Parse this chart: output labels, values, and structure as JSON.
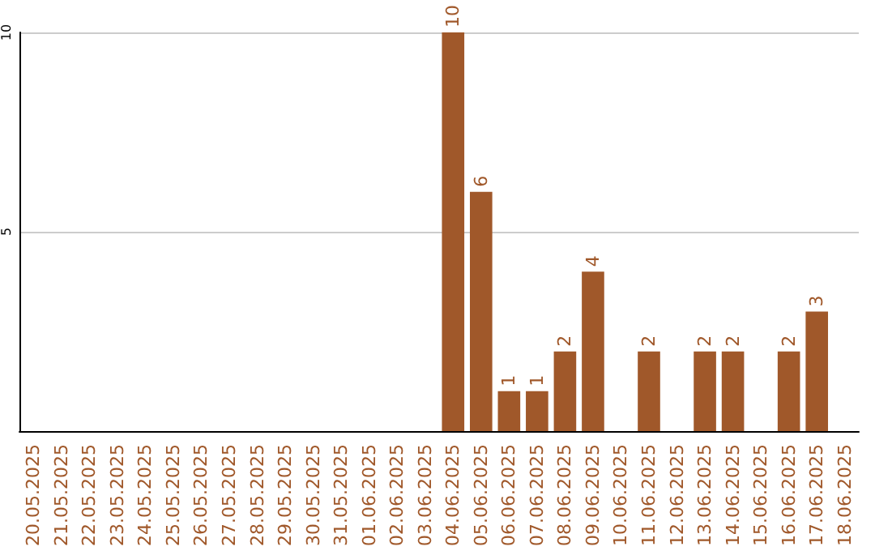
{
  "chart_data": {
    "type": "bar",
    "categories": [
      "20.05.2025",
      "21.05.2025",
      "22.05.2025",
      "23.05.2025",
      "24.05.2025",
      "25.05.2025",
      "26.05.2025",
      "27.05.2025",
      "28.05.2025",
      "29.05.2025",
      "30.05.2025",
      "31.05.2025",
      "01.06.2025",
      "02.06.2025",
      "03.06.2025",
      "04.06.2025",
      "05.06.2025",
      "06.06.2025",
      "07.06.2025",
      "08.06.2025",
      "09.06.2025",
      "10.06.2025",
      "11.06.2025",
      "12.06.2025",
      "13.06.2025",
      "14.06.2025",
      "15.06.2025",
      "16.06.2025",
      "17.06.2025",
      "18.06.2025"
    ],
    "values": [
      0,
      0,
      0,
      0,
      0,
      0,
      0,
      0,
      0,
      0,
      0,
      0,
      0,
      0,
      0,
      10,
      6,
      1,
      1,
      2,
      4,
      0,
      2,
      0,
      2,
      2,
      0,
      2,
      3,
      0
    ],
    "value_labels": [
      null,
      null,
      null,
      null,
      null,
      null,
      null,
      null,
      null,
      null,
      null,
      null,
      null,
      null,
      null,
      "10",
      "6",
      "1",
      "1",
      "2",
      "4",
      null,
      "2",
      null,
      "2",
      "2",
      null,
      "2",
      "3",
      null
    ],
    "color": "#a0582a",
    "ylim": [
      0,
      10
    ],
    "yticks": [
      5,
      10
    ],
    "grid": "y"
  }
}
